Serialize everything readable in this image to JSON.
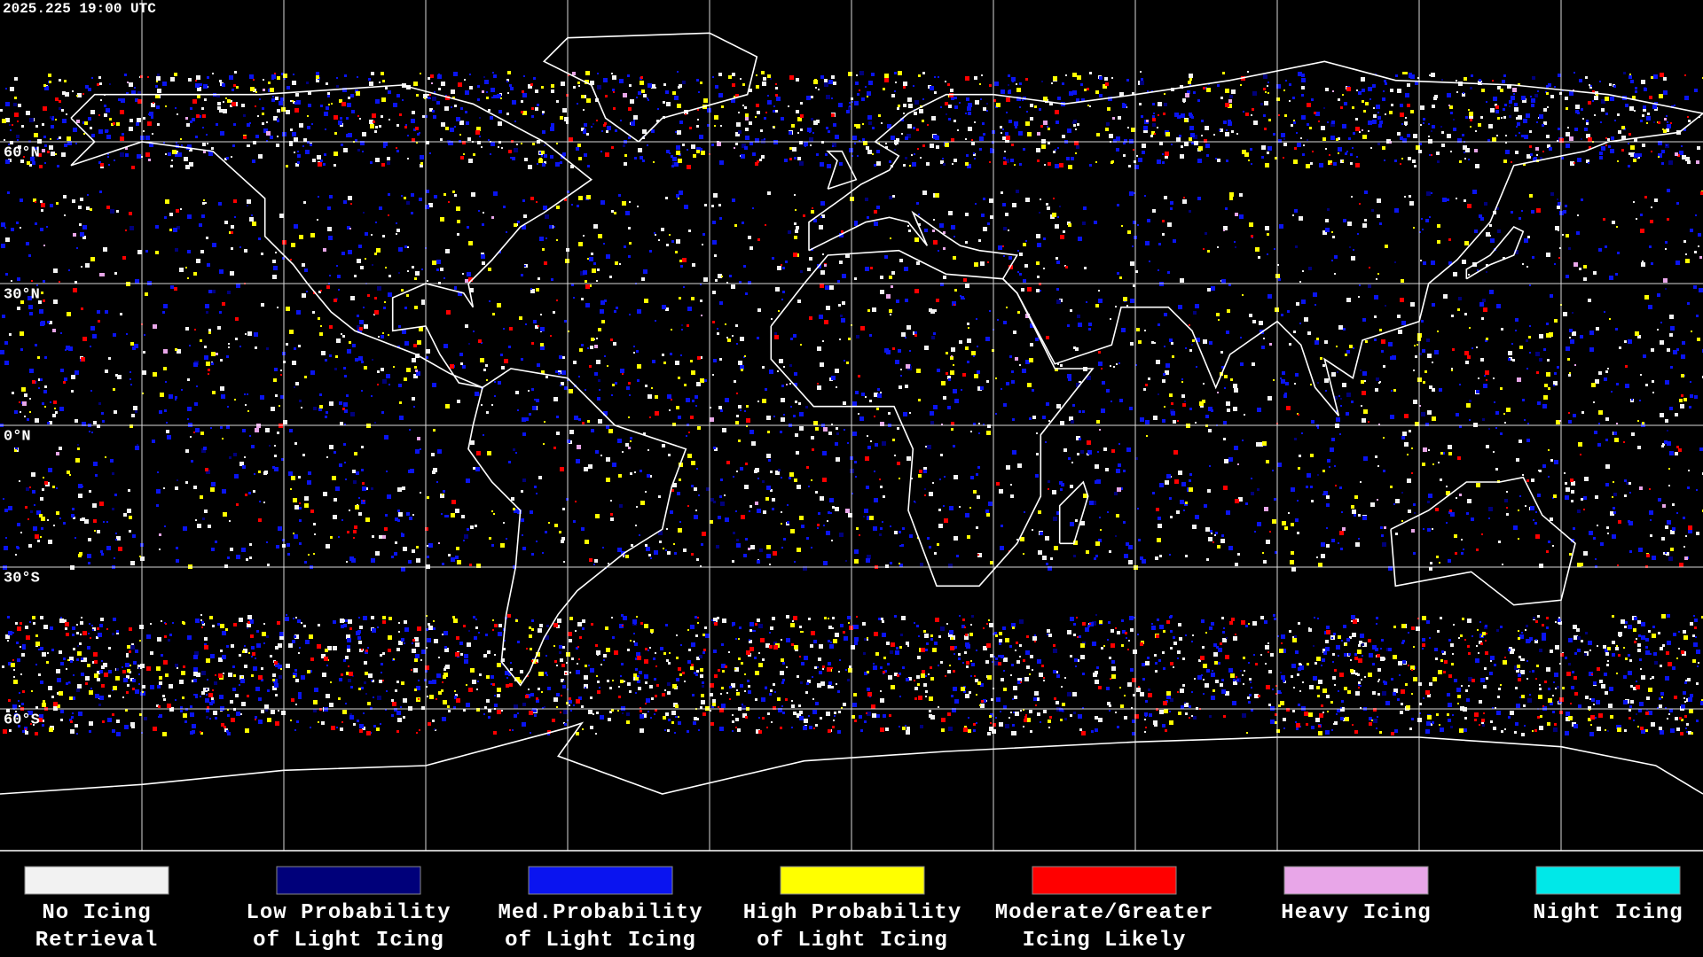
{
  "timestamp": "2025.225 19:00 UTC",
  "map": {
    "lat_labels": [
      "60°N",
      "30°N",
      "0°N",
      "30°S",
      "60°S"
    ]
  },
  "legend": [
    {
      "lines": [
        "No Icing",
        "Retrieval"
      ],
      "color": "#f2f2f2"
    },
    {
      "lines": [
        "Low Probability",
        "of Light Icing"
      ],
      "color": "#00007a"
    },
    {
      "lines": [
        "Med.Probability",
        "of Light Icing"
      ],
      "color": "#0a14f0"
    },
    {
      "lines": [
        "High Probability",
        "of Light Icing"
      ],
      "color": "#ffff00"
    },
    {
      "lines": [
        "Moderate/Greater",
        "Icing Likely"
      ],
      "color": "#ff0000"
    },
    {
      "lines": [
        "Heavy Icing"
      ],
      "color": "#e8a6e8"
    },
    {
      "lines": [
        "Night Icing"
      ],
      "color": "#00e8e8"
    }
  ]
}
